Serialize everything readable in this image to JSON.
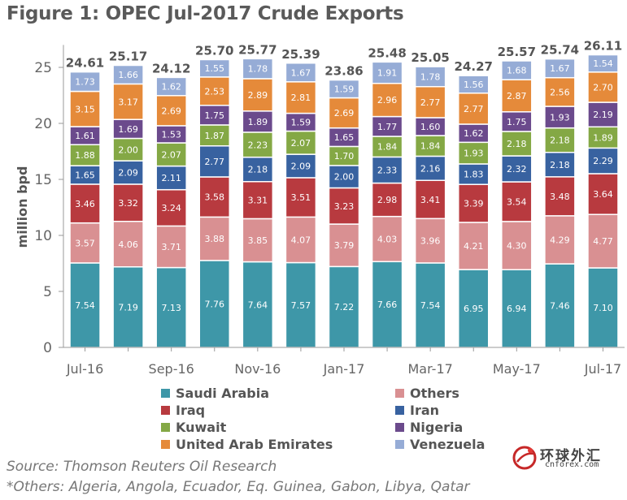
{
  "title": "Figure 1: OPEC Jul-2017 Crude Exports",
  "source_note": "Source: Thomson Reuters Oil Research",
  "others_note": "*Others: Algeria, Angola, Ecuador, Eq. Guinea, Gabon, Libya, Qatar",
  "logo": {
    "cn_text": "环球外汇",
    "en_text": "cnforex.com"
  },
  "chart_data": {
    "type": "bar",
    "stacked": true,
    "title": "Figure 1: OPEC Jul-2017 Crude Exports",
    "ylabel": "million bpd",
    "xlabel": "",
    "ylim": [
      0,
      27
    ],
    "yticks": [
      0,
      5,
      10,
      15,
      20,
      25
    ],
    "grid": false,
    "legend_position": "bottom",
    "categories": [
      "Jul-16",
      "Aug-16",
      "Sep-16",
      "Oct-16",
      "Nov-16",
      "Dec-16",
      "Jan-17",
      "Feb-17",
      "Mar-17",
      "Apr-17",
      "May-17",
      "Jun-17",
      "Jul-17"
    ],
    "xtick_labels": [
      "Jul-16",
      "",
      "Sep-16",
      "",
      "Nov-16",
      "",
      "Jan-17",
      "",
      "Mar-17",
      "",
      "May-17",
      "",
      "Jul-17"
    ],
    "totals": [
      "24.61",
      "25.17",
      "24.12",
      "25.70",
      "25.77",
      "25.39",
      "23.86",
      "25.48",
      "25.05",
      "24.27",
      "25.57",
      "25.74",
      "26.11"
    ],
    "series": [
      {
        "name": "Saudi Arabia",
        "color": "#3e97a8",
        "values": [
          7.54,
          7.19,
          7.13,
          7.76,
          7.64,
          7.57,
          7.22,
          7.66,
          7.54,
          6.95,
          6.94,
          7.46,
          7.1
        ]
      },
      {
        "name": "Others",
        "color": "#d99092",
        "values": [
          3.57,
          4.06,
          3.71,
          3.88,
          3.85,
          4.07,
          3.79,
          4.03,
          3.96,
          4.21,
          4.3,
          4.29,
          4.77
        ]
      },
      {
        "name": "Iraq",
        "color": "#b83a3f",
        "values": [
          3.46,
          3.32,
          3.24,
          3.58,
          3.31,
          3.51,
          3.23,
          2.98,
          3.41,
          3.39,
          3.54,
          3.48,
          3.64
        ]
      },
      {
        "name": "Iran",
        "color": "#3862a0",
        "values": [
          1.65,
          2.09,
          2.11,
          2.77,
          2.18,
          2.09,
          2.0,
          2.33,
          2.16,
          1.83,
          2.32,
          2.18,
          2.29
        ]
      },
      {
        "name": "Kuwait",
        "color": "#84a845",
        "values": [
          1.88,
          2.0,
          2.07,
          1.87,
          2.23,
          2.07,
          1.7,
          1.84,
          1.84,
          1.93,
          2.18,
          2.18,
          1.89
        ]
      },
      {
        "name": "Nigeria",
        "color": "#6b4a8c",
        "values": [
          1.61,
          1.69,
          1.53,
          1.75,
          1.89,
          1.59,
          1.65,
          1.77,
          1.6,
          1.62,
          1.75,
          1.93,
          2.19
        ]
      },
      {
        "name": "United Arab Emirates",
        "color": "#e58a3a",
        "values": [
          3.15,
          3.17,
          2.69,
          2.53,
          2.89,
          2.81,
          2.69,
          2.96,
          2.77,
          2.77,
          2.87,
          2.56,
          2.7
        ]
      },
      {
        "name": "Venezuela",
        "color": "#96acd6",
        "values": [
          1.73,
          1.66,
          1.62,
          1.55,
          1.78,
          1.67,
          1.59,
          1.91,
          1.78,
          1.56,
          1.68,
          1.67,
          1.54
        ]
      }
    ]
  }
}
